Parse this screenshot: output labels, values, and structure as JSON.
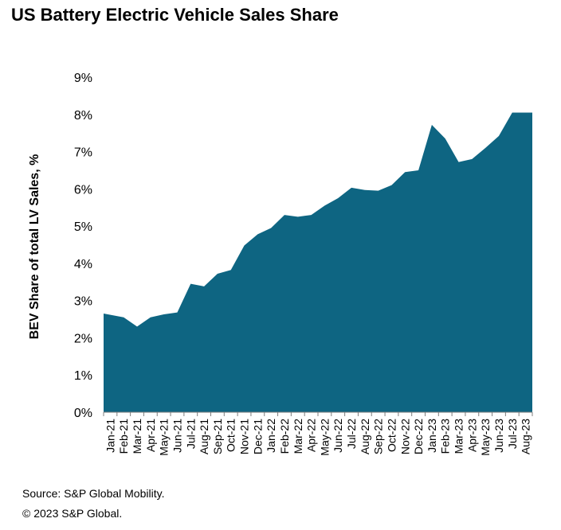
{
  "chart_data": {
    "type": "area",
    "title": "US Battery Electric Vehicle Sales Share",
    "xlabel": "",
    "ylabel": "BEV Share of total LV Sales, %",
    "ylim": [
      0,
      9
    ],
    "yticks": [
      "0%",
      "1%",
      "2%",
      "3%",
      "4%",
      "5%",
      "6%",
      "7%",
      "8%",
      "9%"
    ],
    "grid": false,
    "legend": "none",
    "color": "#0e6582",
    "categories": [
      "Jan-21",
      "Feb-21",
      "Mar-21",
      "Apr-21",
      "May-21",
      "Jun-21",
      "Jul-21",
      "Aug-21",
      "Sep-21",
      "Oct-21",
      "Nov-21",
      "Dec-21",
      "Jan-22",
      "Feb-22",
      "Mar-22",
      "Apr-22",
      "May-22",
      "Jun-22",
      "Jul-22",
      "Aug-22",
      "Sep-22",
      "Oct-22",
      "Nov-22",
      "Dec-22",
      "Jan-23",
      "Feb-23",
      "Mar-23",
      "Apr-23",
      "May-23",
      "Jun-23",
      "Jul-23",
      "Aug-23"
    ],
    "values": [
      2.65,
      2.55,
      2.3,
      2.55,
      2.63,
      2.68,
      3.45,
      3.38,
      3.72,
      3.82,
      4.48,
      4.78,
      4.95,
      5.3,
      5.25,
      5.3,
      5.55,
      5.75,
      6.03,
      5.97,
      5.95,
      6.1,
      6.45,
      6.5,
      7.72,
      7.35,
      6.72,
      6.8,
      7.1,
      7.42,
      8.05,
      8.05
    ]
  },
  "source": "Source: S&P Global Mobility.",
  "copyright": "© 2023 S&P Global."
}
